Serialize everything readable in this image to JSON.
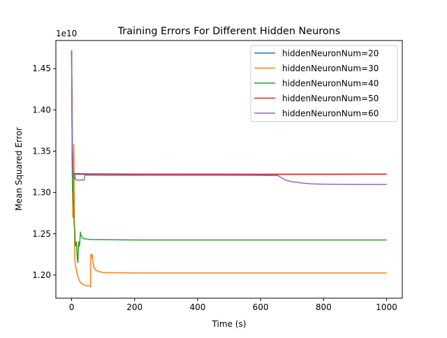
{
  "chart_data": {
    "type": "line",
    "title": "Training Errors For Different Hidden Neurons",
    "xlabel": "Time (s)",
    "ylabel": "Mean Squared Error",
    "y_offset_label": "1e10",
    "xlim": [
      -50,
      1050
    ],
    "ylim": [
      1.172,
      1.484
    ],
    "xticks": [
      0,
      200,
      400,
      600,
      800,
      1000
    ],
    "yticks": [
      1.2,
      1.25,
      1.3,
      1.35,
      1.4,
      1.45
    ],
    "grid": false,
    "legend_position": "upper right",
    "series": [
      {
        "name": "hiddenNeuronNum=20",
        "color": "#1f77b4",
        "points": [
          [
            0,
            1.472
          ],
          [
            3,
            1.33
          ],
          [
            6,
            1.3225
          ],
          [
            10,
            1.322
          ],
          [
            50,
            1.3222
          ],
          [
            200,
            1.322
          ],
          [
            400,
            1.3222
          ],
          [
            600,
            1.322
          ],
          [
            800,
            1.3221
          ],
          [
            1000,
            1.3222
          ]
        ]
      },
      {
        "name": "hiddenNeuronNum=30",
        "color": "#ff7f0e",
        "points": [
          [
            0,
            1.472
          ],
          [
            2,
            1.33
          ],
          [
            4,
            1.27
          ],
          [
            6,
            1.34
          ],
          [
            7,
            1.358
          ],
          [
            8,
            1.3
          ],
          [
            10,
            1.22
          ],
          [
            12,
            1.212
          ],
          [
            16,
            1.205
          ],
          [
            20,
            1.198
          ],
          [
            25,
            1.193
          ],
          [
            30,
            1.19
          ],
          [
            40,
            1.188
          ],
          [
            50,
            1.187
          ],
          [
            58,
            1.187
          ],
          [
            60,
            1.186
          ],
          [
            61,
            1.225
          ],
          [
            63,
            1.222
          ],
          [
            65,
            1.225
          ],
          [
            68,
            1.215
          ],
          [
            72,
            1.208
          ],
          [
            80,
            1.205
          ],
          [
            100,
            1.203
          ],
          [
            200,
            1.2025
          ],
          [
            400,
            1.2025
          ],
          [
            600,
            1.2025
          ],
          [
            800,
            1.2025
          ],
          [
            1000,
            1.2025
          ]
        ]
      },
      {
        "name": "hiddenNeuronNum=40",
        "color": "#2ca02c",
        "points": [
          [
            0,
            1.472
          ],
          [
            2,
            1.34
          ],
          [
            3,
            1.3
          ],
          [
            4,
            1.315
          ],
          [
            5,
            1.285
          ],
          [
            6,
            1.29
          ],
          [
            8,
            1.26
          ],
          [
            10,
            1.255
          ],
          [
            12,
            1.235
          ],
          [
            15,
            1.24
          ],
          [
            18,
            1.22
          ],
          [
            20,
            1.215
          ],
          [
            22,
            1.24
          ],
          [
            25,
            1.235
          ],
          [
            28,
            1.252
          ],
          [
            30,
            1.248
          ],
          [
            35,
            1.245
          ],
          [
            40,
            1.244
          ],
          [
            60,
            1.243
          ],
          [
            200,
            1.2425
          ],
          [
            400,
            1.2425
          ],
          [
            600,
            1.2425
          ],
          [
            800,
            1.2425
          ],
          [
            1000,
            1.2425
          ]
        ]
      },
      {
        "name": "hiddenNeuronNum=50",
        "color": "#d62728",
        "points": [
          [
            0,
            1.472
          ],
          [
            2,
            1.34
          ],
          [
            4,
            1.324
          ],
          [
            10,
            1.3228
          ],
          [
            50,
            1.3225
          ],
          [
            200,
            1.3223
          ],
          [
            400,
            1.3222
          ],
          [
            600,
            1.3221
          ],
          [
            800,
            1.322
          ],
          [
            1000,
            1.3222
          ]
        ]
      },
      {
        "name": "hiddenNeuronNum=60",
        "color": "#9467bd",
        "points": [
          [
            0,
            1.472
          ],
          [
            2,
            1.36
          ],
          [
            4,
            1.33
          ],
          [
            6,
            1.318
          ],
          [
            8,
            1.316
          ],
          [
            10,
            1.322
          ],
          [
            12,
            1.316
          ],
          [
            15,
            1.315
          ],
          [
            40,
            1.315
          ],
          [
            42,
            1.321
          ],
          [
            100,
            1.3208
          ],
          [
            300,
            1.3208
          ],
          [
            500,
            1.3208
          ],
          [
            600,
            1.3207
          ],
          [
            655,
            1.3205
          ],
          [
            665,
            1.318
          ],
          [
            680,
            1.315
          ],
          [
            700,
            1.313
          ],
          [
            730,
            1.3115
          ],
          [
            760,
            1.3105
          ],
          [
            800,
            1.31
          ],
          [
            900,
            1.3097
          ],
          [
            1000,
            1.3097
          ]
        ]
      }
    ]
  }
}
